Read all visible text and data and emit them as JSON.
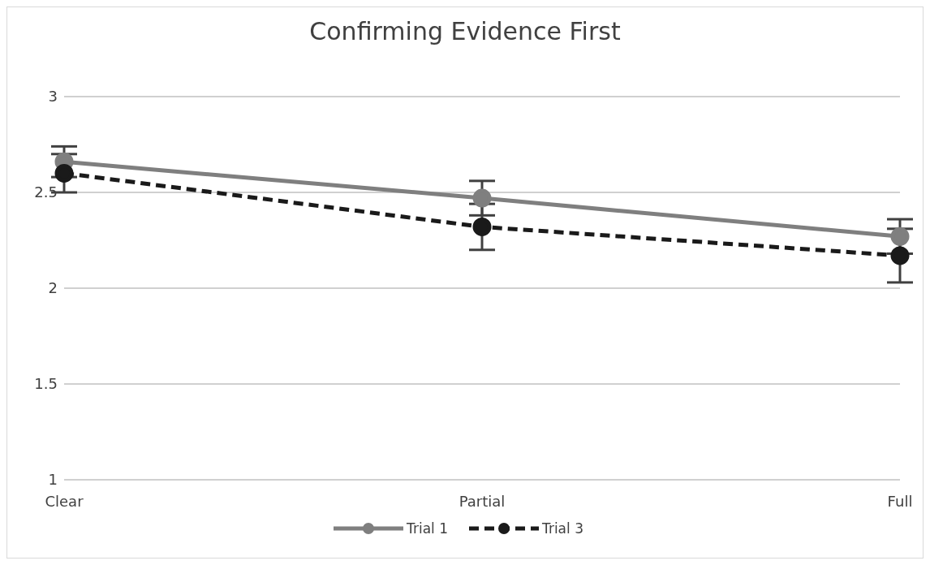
{
  "chart_data": {
    "type": "line",
    "title": "Confirming Evidence First",
    "categories": [
      "Clear",
      "Partial",
      "Full"
    ],
    "series": [
      {
        "name": "Trial 1",
        "color": "#7f7f7f",
        "values": [
          2.66,
          2.47,
          2.27
        ],
        "errors": [
          0.08,
          0.09,
          0.09
        ],
        "line_style": "solid"
      },
      {
        "name": "Trial 3",
        "color": "#1a1a1a",
        "values": [
          2.6,
          2.32,
          2.17
        ],
        "errors": [
          0.1,
          0.12,
          0.14
        ],
        "line_style": "dashed"
      }
    ],
    "ylim": [
      1,
      3
    ],
    "yticks": [
      1,
      1.5,
      2,
      2.5,
      3
    ],
    "grid": "y",
    "legend": "bottom",
    "marker": "circle"
  }
}
